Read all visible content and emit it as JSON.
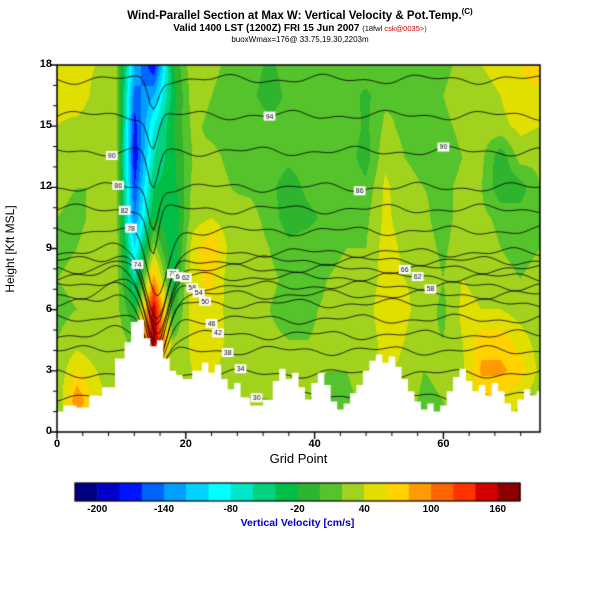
{
  "header": {
    "title": "Wind-Parallel Section at Max W: Vertical Velocity & Pot.Temp.",
    "title_sup": "(C)",
    "valid_line": "Valid 1400 LST (1200Z) FRI 15 Jun 2007",
    "valid_tag_prefix": "(18fwl ",
    "valid_tag_red": "csk@0035>)",
    "info_line": "buoxWmax=176@ 33.75,19.30,2203m"
  },
  "chart_data": {
    "type": "heatmap",
    "title": "Wind-Parallel Section at Max W: Vertical Velocity & Pot.Temp. (C)",
    "subtitle": "Valid 1400 LST (1200Z) FRI 15 Jun 2007",
    "xlabel": "Grid Point",
    "ylabel": "Height [Kft MSL]",
    "xlim": [
      0,
      75
    ],
    "ylim": [
      0,
      18
    ],
    "x_ticks": [
      0,
      20,
      40,
      60
    ],
    "x_minor_step": 4,
    "y_ticks": [
      0,
      3,
      6,
      9,
      12,
      15,
      18
    ],
    "y_minor_step": 1,
    "colorbar": {
      "label": "Vertical Velocity [cm/s]",
      "label_color": "#0000cc",
      "min": -220,
      "max": 180,
      "step": 20,
      "tick_labels": [
        -200,
        -140,
        -80,
        -20,
        40,
        100,
        160
      ],
      "colors": [
        "#000082",
        "#0000c8",
        "#0014ff",
        "#0064ff",
        "#00a0ff",
        "#00d2ff",
        "#00ffff",
        "#00e6c8",
        "#00d27d",
        "#00be46",
        "#2eb42e",
        "#55c32b",
        "#a0d21e",
        "#e1df00",
        "#ffd200",
        "#ff9b00",
        "#ff6400",
        "#ff3200",
        "#d20000",
        "#8c0000"
      ]
    },
    "w_field": {
      "units": "cm/s",
      "x": [
        0,
        3,
        6,
        9,
        12,
        15,
        18,
        21,
        24,
        27,
        30,
        33,
        36,
        39,
        42,
        45,
        48,
        51,
        54,
        57,
        60,
        63,
        66,
        69,
        72,
        75
      ],
      "y": [
        18,
        16.5,
        15,
        13.5,
        12,
        10.5,
        9,
        7.5,
        6,
        4.5,
        3,
        1.5,
        0
      ],
      "values": [
        [
          50,
          45,
          40,
          30,
          -120,
          -180,
          -20,
          35,
          25,
          15,
          10,
          -5,
          10,
          15,
          10,
          5,
          15,
          20,
          15,
          10,
          15,
          25,
          40,
          45,
          60,
          70
        ],
        [
          45,
          50,
          35,
          35,
          -150,
          -120,
          -30,
          30,
          20,
          10,
          5,
          -10,
          5,
          10,
          15,
          10,
          -5,
          15,
          20,
          15,
          20,
          30,
          35,
          40,
          55,
          55
        ],
        [
          40,
          35,
          30,
          40,
          -170,
          -80,
          -20,
          25,
          15,
          10,
          15,
          5,
          10,
          5,
          10,
          15,
          -5,
          25,
          15,
          10,
          15,
          25,
          30,
          35,
          45,
          40
        ],
        [
          30,
          25,
          25,
          40,
          -180,
          -60,
          -25,
          20,
          25,
          15,
          10,
          10,
          5,
          10,
          15,
          10,
          -10,
          35,
          20,
          15,
          10,
          20,
          25,
          -15,
          30,
          25
        ],
        [
          25,
          20,
          20,
          35,
          -160,
          -40,
          -30,
          25,
          30,
          20,
          15,
          5,
          -10,
          5,
          10,
          15,
          5,
          45,
          25,
          20,
          15,
          25,
          20,
          -15,
          -10,
          20
        ],
        [
          20,
          15,
          25,
          35,
          -140,
          -20,
          -40,
          30,
          40,
          25,
          30,
          10,
          -10,
          -5,
          5,
          10,
          15,
          45,
          30,
          25,
          10,
          30,
          25,
          15,
          10,
          15
        ],
        [
          15,
          20,
          30,
          40,
          -100,
          30,
          -40,
          50,
          80,
          30,
          35,
          20,
          5,
          10,
          15,
          20,
          20,
          50,
          35,
          30,
          15,
          35,
          30,
          20,
          15,
          20
        ],
        [
          20,
          25,
          25,
          35,
          -60,
          90,
          -30,
          55,
          65,
          25,
          30,
          25,
          15,
          5,
          20,
          25,
          25,
          50,
          40,
          35,
          20,
          40,
          35,
          25,
          20,
          25
        ],
        [
          15,
          20,
          20,
          30,
          -20,
          160,
          -10,
          50,
          55,
          30,
          35,
          20,
          10,
          15,
          25,
          20,
          30,
          55,
          45,
          30,
          15,
          45,
          40,
          40,
          30,
          20
        ],
        [
          20,
          30,
          25,
          35,
          10,
          170,
          20,
          45,
          50,
          35,
          30,
          25,
          20,
          20,
          25,
          25,
          25,
          50,
          40,
          25,
          20,
          40,
          70,
          70,
          50,
          30
        ],
        [
          25,
          60,
          40,
          30,
          20,
          80,
          30,
          40,
          45,
          30,
          35,
          30,
          30,
          25,
          20,
          20,
          30,
          45,
          35,
          20,
          25,
          35,
          85,
          85,
          70,
          35
        ],
        [
          20,
          100,
          50,
          25,
          15,
          40,
          25,
          35,
          40,
          25,
          30,
          25,
          25,
          20,
          15,
          15,
          25,
          35,
          30,
          15,
          20,
          30,
          60,
          55,
          40,
          25
        ],
        [
          15,
          60,
          35,
          20,
          10,
          20,
          20,
          30,
          35,
          20,
          25,
          20,
          20,
          15,
          10,
          10,
          20,
          30,
          25,
          10,
          15,
          25,
          40,
          35,
          30,
          20
        ]
      ]
    },
    "terrain": {
      "units": "Kft",
      "x": [
        0,
        2,
        4,
        6,
        8,
        10,
        11,
        12,
        13,
        14,
        15,
        16,
        17,
        18,
        19,
        20,
        22,
        23,
        24,
        25,
        26,
        27,
        28,
        29,
        31,
        33,
        34,
        35,
        36,
        37,
        38,
        39,
        40,
        41,
        42,
        43,
        44,
        45,
        46,
        47,
        48,
        49,
        50,
        51,
        52,
        53,
        54,
        55,
        56,
        57,
        58,
        59,
        60,
        61,
        62,
        63,
        64,
        65,
        66,
        67,
        68,
        69,
        70,
        71,
        72,
        73,
        74,
        75
      ],
      "height": [
        1.0,
        1.3,
        1.2,
        1.8,
        2.2,
        3.6,
        4.4,
        5.4,
        5.5,
        4.6,
        4.2,
        4.5,
        3.6,
        3.0,
        2.8,
        2.6,
        3.0,
        3.4,
        2.9,
        3.3,
        2.6,
        2.1,
        2.4,
        1.7,
        1.3,
        1.6,
        2.5,
        3.1,
        2.6,
        2.9,
        2.2,
        1.6,
        2.4,
        2.9,
        2.3,
        1.5,
        1.1,
        1.4,
        1.9,
        2.3,
        3.0,
        3.5,
        3.8,
        3.4,
        3.7,
        3.2,
        2.6,
        2.0,
        1.5,
        1.1,
        1.4,
        1.0,
        1.3,
        2.0,
        2.7,
        3.1,
        2.5,
        2.0,
        2.3,
        1.8,
        2.4,
        2.0,
        1.4,
        1.0,
        1.6,
        2.1,
        1.8,
        2.0
      ]
    },
    "theta_contours": {
      "units": "C",
      "interval": 4,
      "values": [
        26,
        30,
        34,
        38,
        42,
        46,
        50,
        54,
        58,
        62,
        66,
        70,
        74,
        78,
        82,
        86,
        90,
        94,
        98
      ],
      "height_anchors": [
        [
          26,
          0.6
        ],
        [
          38,
          4.0
        ],
        [
          50,
          6.3
        ],
        [
          62,
          7.6
        ],
        [
          74,
          8.8
        ],
        [
          86,
          12.0
        ],
        [
          98,
          17.3
        ]
      ],
      "labels": [
        {
          "value": 90,
          "x": 8.5
        },
        {
          "value": 86,
          "x": 9.5
        },
        {
          "value": 82,
          "x": 10.5
        },
        {
          "value": 78,
          "x": 11.5
        },
        {
          "value": 74,
          "x": 12.5
        },
        {
          "value": 70,
          "x": 18.0
        },
        {
          "value": 66,
          "x": 19.0
        },
        {
          "value": 62,
          "x": 20.0
        },
        {
          "value": 58,
          "x": 21.0
        },
        {
          "value": 54,
          "x": 22.0
        },
        {
          "value": 50,
          "x": 23.0
        },
        {
          "value": 46,
          "x": 24.0
        },
        {
          "value": 42,
          "x": 25.0
        },
        {
          "value": 38,
          "x": 26.5
        },
        {
          "value": 34,
          "x": 28.5
        },
        {
          "value": 30,
          "x": 31.0
        },
        {
          "value": 94,
          "x": 33.0
        },
        {
          "value": 86,
          "x": 47.0
        },
        {
          "value": 66,
          "x": 54.0
        },
        {
          "value": 62,
          "x": 56.0
        },
        {
          "value": 58,
          "x": 58.0
        },
        {
          "value": 90,
          "x": 60.0
        }
      ]
    }
  }
}
